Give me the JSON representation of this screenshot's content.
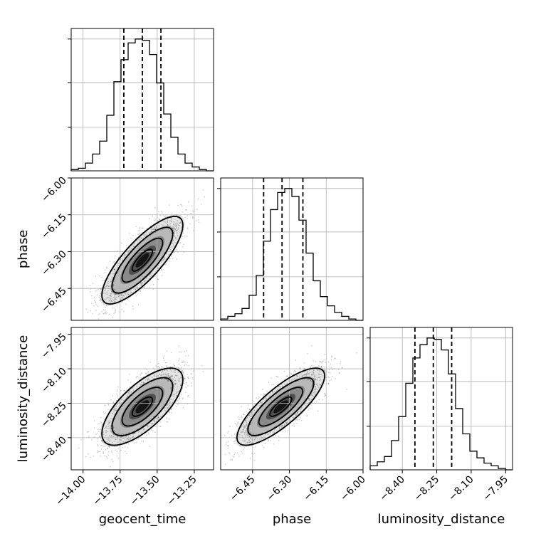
{
  "chart_data": {
    "type": "corner",
    "parameters": [
      {
        "name": "geocent_time",
        "axis_label": "geocent_time",
        "range": [
          -14.08,
          -13.12
        ],
        "ticks": [
          -14.0,
          -13.75,
          -13.5,
          -13.25
        ],
        "tick_labels": [
          "−14.00",
          "−13.75",
          "−13.50",
          "−13.25"
        ],
        "median": -13.6,
        "quantiles": [
          -13.725,
          -13.475
        ],
        "hist_values": [
          0.01,
          0.02,
          0.06,
          0.13,
          0.23,
          0.43,
          0.69,
          0.86,
          0.99,
          1.02,
          1.01,
          0.9,
          0.68,
          0.44,
          0.26,
          0.13,
          0.06,
          0.03,
          0.01,
          0.0
        ]
      },
      {
        "name": "phase",
        "axis_label": "phase",
        "range": [
          -6.58,
          -6.0
        ],
        "ticks": [
          -6.45,
          -6.3,
          -6.15,
          -6.0
        ],
        "tick_labels": [
          "−6.45",
          "−6.30",
          "−6.15",
          "−6.00"
        ],
        "median": -6.33,
        "quantiles": [
          -6.405,
          -6.245
        ],
        "hist_values": [
          0.01,
          0.03,
          0.05,
          0.09,
          0.19,
          0.34,
          0.6,
          0.84,
          0.97,
          1.0,
          0.94,
          0.76,
          0.51,
          0.3,
          0.18,
          0.11,
          0.06,
          0.03,
          0.01,
          0.0
        ]
      },
      {
        "name": "luminosity_distance",
        "axis_label": "luminosity_distance",
        "range": [
          -8.54,
          -7.92
        ],
        "ticks": [
          -8.4,
          -8.25,
          -8.1,
          -7.95
        ],
        "tick_labels": [
          "−8.40",
          "−8.25",
          "−8.10",
          "−7.95"
        ],
        "median": -8.265,
        "quantiles": [
          -8.345,
          -8.185
        ],
        "hist_values": [
          0.03,
          0.06,
          0.1,
          0.22,
          0.4,
          0.65,
          0.84,
          0.94,
          0.99,
          0.98,
          0.9,
          0.72,
          0.46,
          0.27,
          0.14,
          0.09,
          0.05,
          0.03,
          0.01,
          0.0
        ]
      }
    ],
    "pairs": [
      {
        "x": "geocent_time",
        "y": "phase",
        "x_mean": -13.6,
        "y_mean": -6.335,
        "x_sd": 0.13,
        "y_sd": 0.085,
        "correlation": 0.8
      },
      {
        "x": "geocent_time",
        "y": "luminosity_distance",
        "x_mean": -13.6,
        "y_mean": -8.265,
        "x_sd": 0.13,
        "y_sd": 0.08,
        "correlation": 0.7
      },
      {
        "x": "phase",
        "y": "luminosity_distance",
        "x_mean": -6.335,
        "y_mean": -8.265,
        "x_sd": 0.085,
        "y_sd": 0.08,
        "correlation": 0.8
      }
    ],
    "contour_levels": [
      0.5,
      1.0,
      1.5,
      2.0
    ],
    "grid": true
  }
}
